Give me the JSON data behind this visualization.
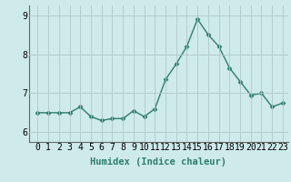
{
  "x": [
    0,
    1,
    2,
    3,
    4,
    5,
    6,
    7,
    8,
    9,
    10,
    11,
    12,
    13,
    14,
    15,
    16,
    17,
    18,
    19,
    20,
    21,
    22,
    23
  ],
  "y": [
    6.5,
    6.5,
    6.5,
    6.5,
    6.65,
    6.4,
    6.3,
    6.35,
    6.35,
    6.55,
    6.4,
    6.6,
    7.35,
    7.75,
    8.2,
    8.9,
    8.5,
    8.2,
    7.65,
    7.3,
    6.95,
    7.0,
    6.65,
    6.75
  ],
  "line_color": "#2e7d6e",
  "marker": "D",
  "markersize": 2.5,
  "linewidth": 1.0,
  "bg_color": "#ceeaea",
  "grid_color": "#b0c8c8",
  "xlabel": "Humidex (Indice chaleur)",
  "ylim": [
    5.75,
    9.25
  ],
  "yticks": [
    6,
    7,
    8,
    9
  ],
  "xlabel_fontsize": 7.5,
  "tick_fontsize": 7
}
